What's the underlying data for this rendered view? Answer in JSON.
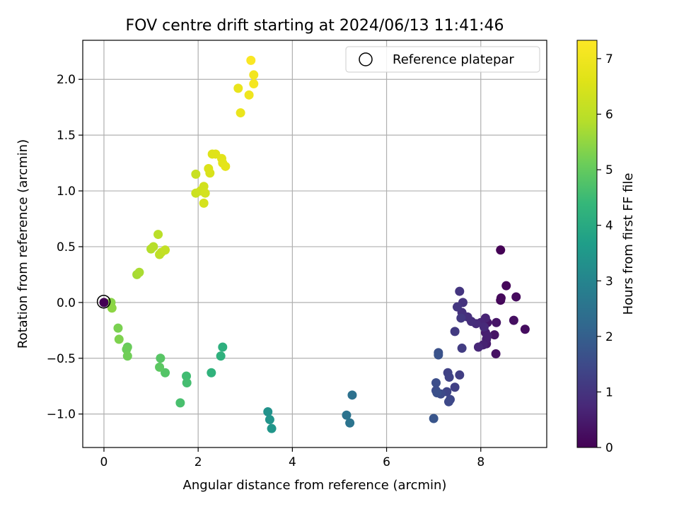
{
  "chart_data": {
    "type": "scatter",
    "title": "FOV centre drift starting at 2024/06/13 11:41:46",
    "xlabel": "Angular distance from reference (arcmin)",
    "ylabel": "Rotation from reference (arcmin)",
    "xlim": [
      -0.45,
      9.4
    ],
    "ylim": [
      -1.3,
      2.35
    ],
    "xticks": [
      0,
      2,
      4,
      6,
      8
    ],
    "yticks": [
      -1.0,
      -0.5,
      0.0,
      0.5,
      1.0,
      1.5,
      2.0
    ],
    "xtick_labels": [
      "0",
      "2",
      "4",
      "6",
      "8"
    ],
    "ytick_labels": [
      "−1.0",
      "−0.5",
      "0.0",
      "0.5",
      "1.0",
      "1.5",
      "2.0"
    ],
    "grid": true,
    "legend": {
      "position": "top-right",
      "label": "Reference platepar"
    },
    "reference_point": {
      "x": 0,
      "y": 0
    },
    "colorbar": {
      "label": "Hours from first FF file",
      "range": [
        0,
        7.33
      ],
      "ticks": [
        0,
        1,
        2,
        3,
        4,
        5,
        6,
        7
      ],
      "tick_labels": [
        "0",
        "1",
        "2",
        "3",
        "4",
        "5",
        "6",
        "7"
      ],
      "colormap": "viridis"
    },
    "points": [
      {
        "x": 8.42,
        "y": 0.47,
        "t": 0.02
      },
      {
        "x": 8.42,
        "y": 0.02,
        "t": 0.08
      },
      {
        "x": 8.54,
        "y": 0.15,
        "t": 0.12
      },
      {
        "x": 8.43,
        "y": 0.04,
        "t": 0.15
      },
      {
        "x": 8.75,
        "y": 0.05,
        "t": 0.18
      },
      {
        "x": 8.94,
        "y": -0.24,
        "t": 0.22
      },
      {
        "x": 8.7,
        "y": -0.16,
        "t": 0.26
      },
      {
        "x": 8.32,
        "y": -0.46,
        "t": 0.3
      },
      {
        "x": 8.29,
        "y": -0.29,
        "t": 0.34
      },
      {
        "x": 8.33,
        "y": -0.18,
        "t": 0.38
      },
      {
        "x": 8.14,
        "y": -0.18,
        "t": 0.42
      },
      {
        "x": 8.12,
        "y": -0.37,
        "t": 0.46
      },
      {
        "x": 8.1,
        "y": -0.27,
        "t": 0.5
      },
      {
        "x": 8.12,
        "y": -0.33,
        "t": 0.54
      },
      {
        "x": 8.14,
        "y": -0.3,
        "t": 0.58
      },
      {
        "x": 8.05,
        "y": -0.38,
        "t": 0.62
      },
      {
        "x": 8.1,
        "y": -0.14,
        "t": 0.66
      },
      {
        "x": 8.0,
        "y": -0.18,
        "t": 0.7
      },
      {
        "x": 7.95,
        "y": -0.4,
        "t": 0.74
      },
      {
        "x": 8.07,
        "y": -0.22,
        "t": 0.78
      },
      {
        "x": 7.9,
        "y": -0.19,
        "t": 0.82
      },
      {
        "x": 7.8,
        "y": -0.17,
        "t": 0.86
      },
      {
        "x": 7.72,
        "y": -0.13,
        "t": 0.9
      },
      {
        "x": 7.6,
        "y": -0.09,
        "t": 0.94
      },
      {
        "x": 7.62,
        "y": 0.0,
        "t": 0.98
      },
      {
        "x": 7.55,
        "y": 0.1,
        "t": 1.02
      },
      {
        "x": 7.5,
        "y": -0.04,
        "t": 1.06
      },
      {
        "x": 7.58,
        "y": -0.14,
        "t": 1.1
      },
      {
        "x": 7.45,
        "y": -0.26,
        "t": 1.14
      },
      {
        "x": 7.6,
        "y": -0.41,
        "t": 1.18
      },
      {
        "x": 7.55,
        "y": -0.65,
        "t": 1.22
      },
      {
        "x": 7.45,
        "y": -0.76,
        "t": 1.26
      },
      {
        "x": 7.3,
        "y": -0.63,
        "t": 1.3
      },
      {
        "x": 7.33,
        "y": -0.67,
        "t": 1.34
      },
      {
        "x": 7.28,
        "y": -0.8,
        "t": 1.38
      },
      {
        "x": 7.35,
        "y": -0.87,
        "t": 1.42
      },
      {
        "x": 7.32,
        "y": -0.89,
        "t": 1.46
      },
      {
        "x": 7.15,
        "y": -0.82,
        "t": 1.5
      },
      {
        "x": 7.05,
        "y": -0.79,
        "t": 1.54
      },
      {
        "x": 7.05,
        "y": -0.72,
        "t": 1.58
      },
      {
        "x": 7.07,
        "y": -0.81,
        "t": 1.62
      },
      {
        "x": 7.1,
        "y": -0.45,
        "t": 1.66
      },
      {
        "x": 7.1,
        "y": -0.47,
        "t": 1.7
      },
      {
        "x": 7.0,
        "y": -1.04,
        "t": 1.74
      },
      {
        "x": 5.27,
        "y": -0.83,
        "t": 2.45
      },
      {
        "x": 5.15,
        "y": -1.01,
        "t": 2.5
      },
      {
        "x": 5.22,
        "y": -1.08,
        "t": 2.55
      },
      {
        "x": 3.48,
        "y": -0.98,
        "t": 3.35
      },
      {
        "x": 3.52,
        "y": -1.05,
        "t": 3.4
      },
      {
        "x": 3.56,
        "y": -1.13,
        "t": 3.45
      },
      {
        "x": 2.52,
        "y": -0.4,
        "t": 4.15
      },
      {
        "x": 2.48,
        "y": -0.48,
        "t": 4.2
      },
      {
        "x": 2.28,
        "y": -0.63,
        "t": 4.25
      },
      {
        "x": 1.75,
        "y": -0.66,
        "t": 4.55
      },
      {
        "x": 1.76,
        "y": -0.72,
        "t": 4.6
      },
      {
        "x": 1.62,
        "y": -0.9,
        "t": 4.65
      },
      {
        "x": 1.3,
        "y": -0.63,
        "t": 4.8
      },
      {
        "x": 1.2,
        "y": -0.5,
        "t": 4.85
      },
      {
        "x": 1.18,
        "y": -0.58,
        "t": 4.9
      },
      {
        "x": 0.5,
        "y": -0.4,
        "t": 5.05
      },
      {
        "x": 0.48,
        "y": -0.42,
        "t": 5.1
      },
      {
        "x": 0.5,
        "y": -0.48,
        "t": 5.15
      },
      {
        "x": 0.3,
        "y": -0.23,
        "t": 5.25
      },
      {
        "x": 0.32,
        "y": -0.33,
        "t": 5.3
      },
      {
        "x": 0.15,
        "y": 0.0,
        "t": 5.4
      },
      {
        "x": 0.17,
        "y": -0.05,
        "t": 5.45
      },
      {
        "x": 0.7,
        "y": 0.25,
        "t": 5.7
      },
      {
        "x": 0.75,
        "y": 0.27,
        "t": 5.75
      },
      {
        "x": 1.0,
        "y": 0.48,
        "t": 5.85
      },
      {
        "x": 1.05,
        "y": 0.5,
        "t": 5.9
      },
      {
        "x": 1.15,
        "y": 0.61,
        "t": 5.95
      },
      {
        "x": 1.18,
        "y": 0.43,
        "t": 6.0
      },
      {
        "x": 1.22,
        "y": 0.45,
        "t": 6.05
      },
      {
        "x": 1.3,
        "y": 0.47,
        "t": 6.1
      },
      {
        "x": 1.95,
        "y": 1.15,
        "t": 6.2
      },
      {
        "x": 1.95,
        "y": 0.98,
        "t": 6.25
      },
      {
        "x": 2.05,
        "y": 1.0,
        "t": 6.3
      },
      {
        "x": 2.12,
        "y": 1.04,
        "t": 6.35
      },
      {
        "x": 2.15,
        "y": 0.98,
        "t": 6.38
      },
      {
        "x": 2.12,
        "y": 0.89,
        "t": 6.42
      },
      {
        "x": 2.25,
        "y": 1.16,
        "t": 6.48
      },
      {
        "x": 2.22,
        "y": 1.2,
        "t": 6.52
      },
      {
        "x": 2.3,
        "y": 1.33,
        "t": 6.58
      },
      {
        "x": 2.37,
        "y": 1.33,
        "t": 6.62
      },
      {
        "x": 2.5,
        "y": 1.29,
        "t": 6.66
      },
      {
        "x": 2.52,
        "y": 1.25,
        "t": 6.7
      },
      {
        "x": 2.58,
        "y": 1.22,
        "t": 6.74
      },
      {
        "x": 2.85,
        "y": 1.92,
        "t": 6.85
      },
      {
        "x": 2.9,
        "y": 1.7,
        "t": 6.9
      },
      {
        "x": 3.08,
        "y": 1.86,
        "t": 6.98
      },
      {
        "x": 3.18,
        "y": 2.04,
        "t": 7.05
      },
      {
        "x": 3.18,
        "y": 1.96,
        "t": 7.12
      },
      {
        "x": 3.12,
        "y": 2.17,
        "t": 7.25
      }
    ]
  }
}
